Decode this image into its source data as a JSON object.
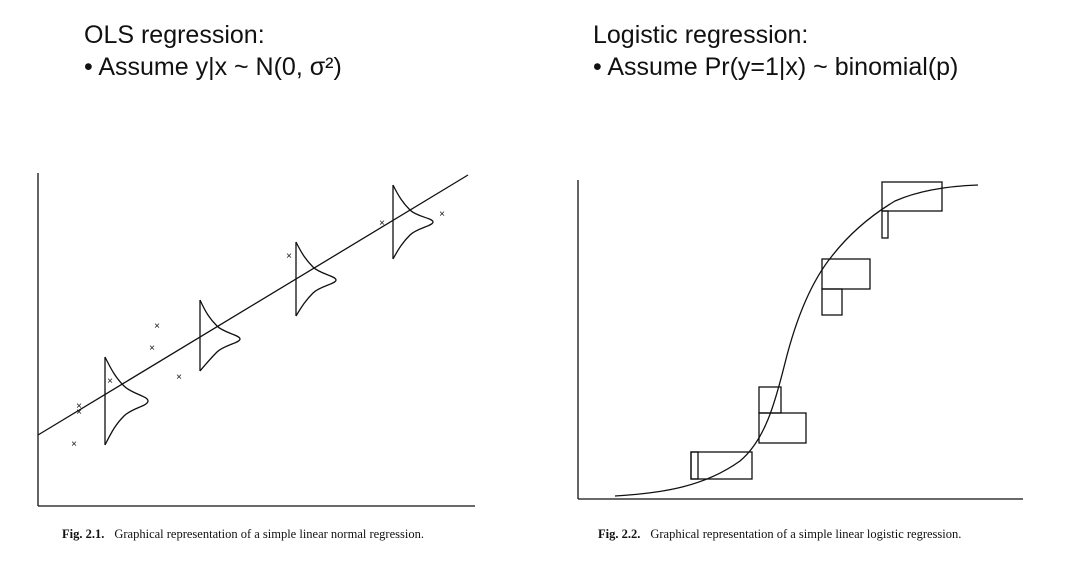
{
  "left_heading": {
    "title": "OLS regression:",
    "bullet": "• Assume y|x ~ N(0, σ²)"
  },
  "right_heading": {
    "title": "Logistic regression:",
    "bullet": "• Assume Pr(y=1|x) ~ binomial(p)"
  },
  "left_figure": {
    "caption_label": "Fig. 2.1.",
    "caption_text": "Graphical representation of a simple linear normal regression.",
    "point_marker": "×"
  },
  "right_figure": {
    "caption_label": "Fig. 2.2.",
    "caption_text": "Graphical representation of a simple linear logistic regression."
  },
  "colors": {
    "ink": "#111111",
    "background": "#ffffff"
  }
}
